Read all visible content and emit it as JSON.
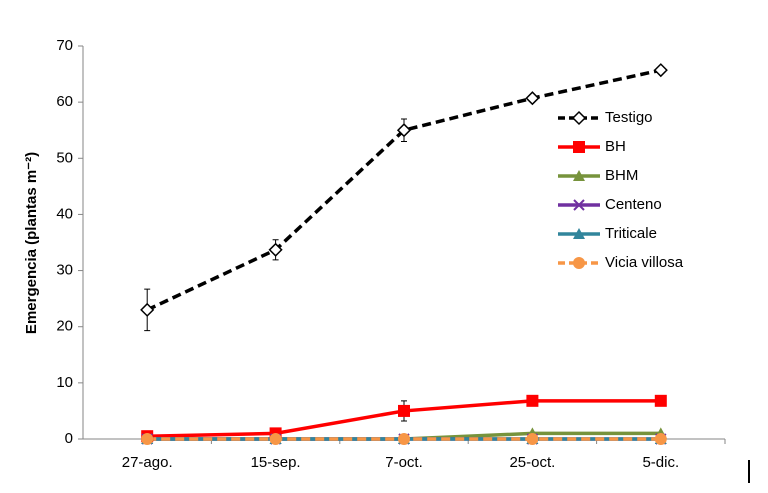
{
  "chart_data": {
    "type": "line",
    "y_label": "Emergencia (plantas m⁻²)",
    "categories": [
      "27-ago.",
      "15-sep.",
      "7-oct.",
      "25-oct.",
      "5-dic."
    ],
    "ylim": [
      0,
      70
    ],
    "yticks": [
      0,
      10,
      20,
      30,
      40,
      50,
      60,
      70
    ],
    "legend": "right",
    "series": [
      {
        "name": "Testigo",
        "color": "#000000",
        "marker": "diamond",
        "dashed": true,
        "values": [
          23,
          33.7,
          55,
          60.7,
          65.7
        ],
        "errors": [
          3.7,
          1.8,
          2,
          0.3,
          0.3
        ]
      },
      {
        "name": "BH",
        "color": "#ff0000",
        "marker": "square",
        "dashed": false,
        "values": [
          0.5,
          1,
          5,
          6.8,
          6.8
        ],
        "errors": [
          0.2,
          0.3,
          1.8,
          0.3,
          0.3
        ]
      },
      {
        "name": "BHM",
        "color": "#77933c",
        "marker": "triangle",
        "dashed": false,
        "values": [
          0,
          0,
          0,
          1,
          1
        ]
      },
      {
        "name": "Centeno",
        "color": "#7030a0",
        "marker": "cross",
        "dashed": false,
        "values": [
          0,
          0,
          0,
          0,
          0
        ]
      },
      {
        "name": "Triticale",
        "color": "#31859c",
        "marker": "triangle",
        "dashed": false,
        "values": [
          0,
          0,
          0,
          0,
          0
        ]
      },
      {
        "name": "Vicia villosa",
        "color": "#f79646",
        "marker": "circle",
        "dashed": true,
        "values": [
          0,
          0,
          0,
          0,
          0
        ]
      }
    ]
  }
}
